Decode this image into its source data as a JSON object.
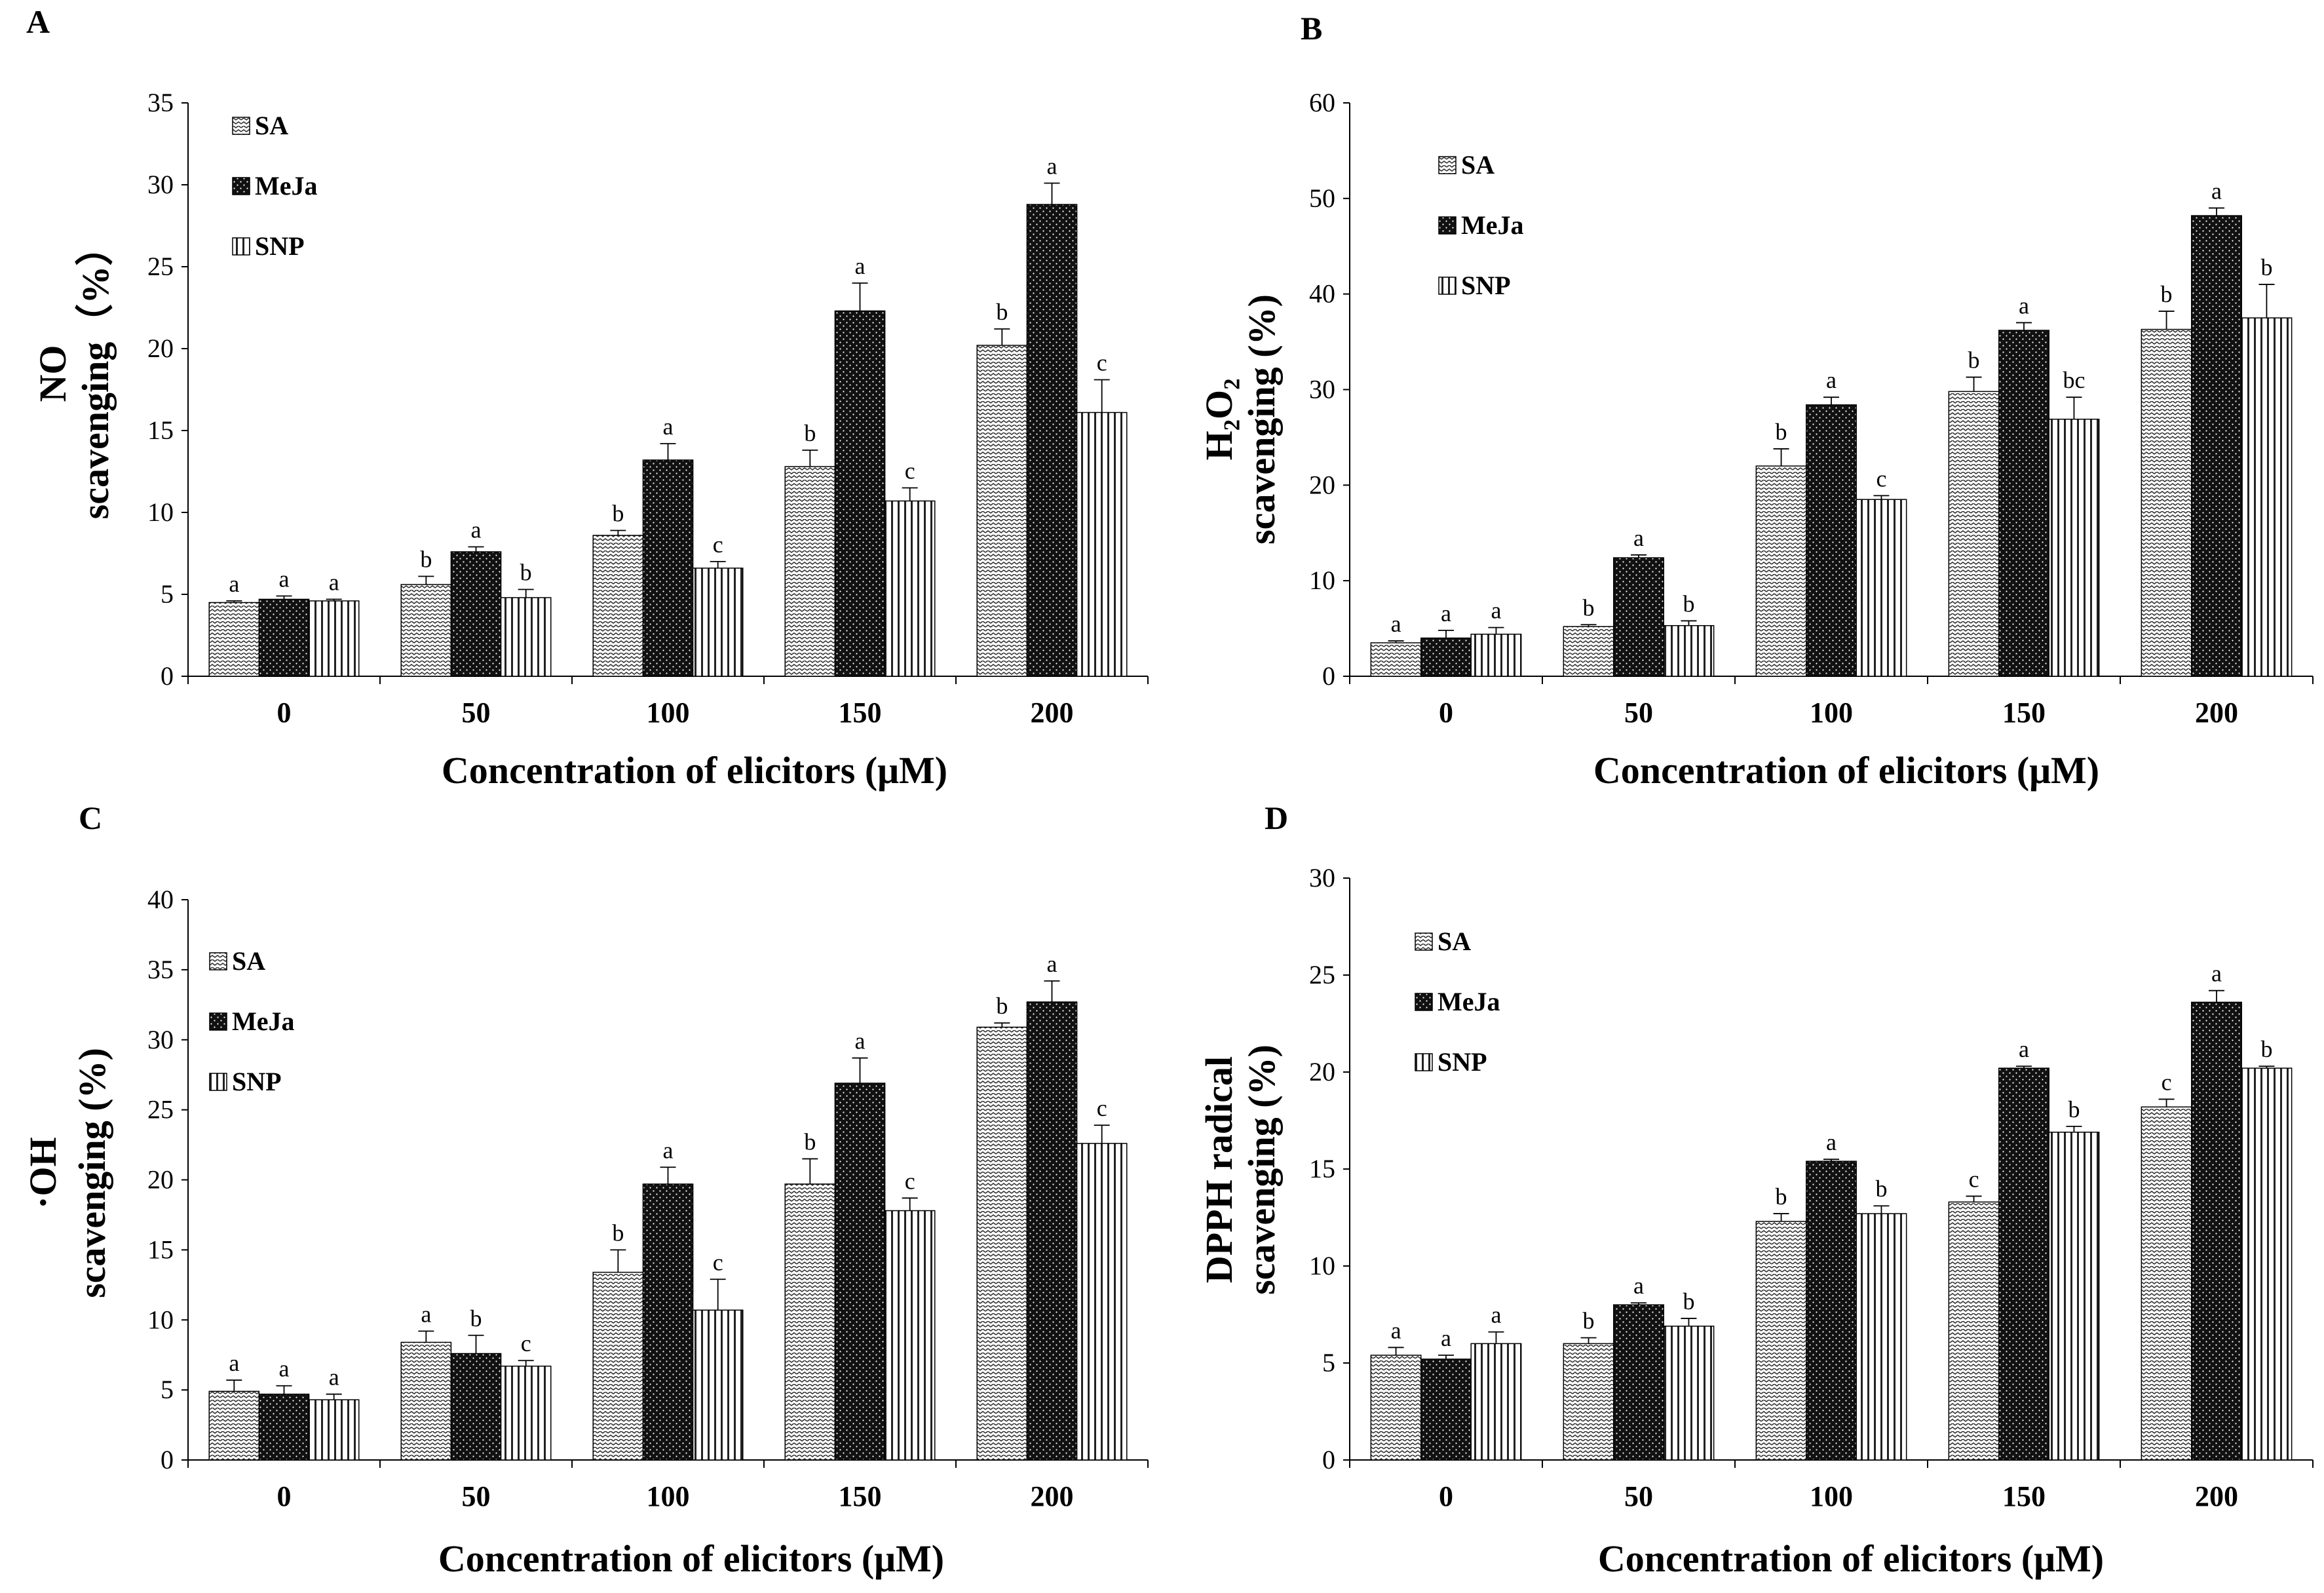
{
  "legend": [
    "SA",
    "MeJa",
    "SNP"
  ],
  "chart_data": [
    {
      "panel": "A",
      "type": "bar",
      "categories": [
        "0",
        "50",
        "100",
        "150",
        "200"
      ],
      "xlabel": "Concentration of elicitors (μM)",
      "ylabel_lines": [
        "NO",
        "scavenging（%）"
      ],
      "ylim": [
        0,
        35
      ],
      "yticks": [
        0,
        5,
        10,
        15,
        20,
        25,
        30,
        35
      ],
      "series": [
        {
          "name": "SA",
          "values": [
            4.5,
            5.6,
            8.6,
            12.8,
            20.2
          ],
          "errors": [
            0.1,
            0.5,
            0.3,
            1.0,
            1.0
          ],
          "letters": [
            "a",
            "b",
            "b",
            "b",
            "b"
          ]
        },
        {
          "name": "MeJa",
          "values": [
            4.7,
            7.6,
            13.2,
            22.3,
            28.8
          ],
          "errors": [
            0.2,
            0.3,
            1.0,
            1.7,
            1.3
          ],
          "letters": [
            "a",
            "a",
            "a",
            "a",
            "a"
          ]
        },
        {
          "name": "SNP",
          "values": [
            4.6,
            4.8,
            6.6,
            10.7,
            16.1
          ],
          "errors": [
            0.1,
            0.5,
            0.4,
            0.8,
            2.0
          ],
          "letters": [
            "a",
            "b",
            "c",
            "c",
            "c"
          ]
        }
      ]
    },
    {
      "panel": "B",
      "type": "bar",
      "categories": [
        "0",
        "50",
        "100",
        "150",
        "200"
      ],
      "xlabel": "Concentration of elicitors (μM)",
      "ylabel_lines": [
        "H₂O₂",
        "scavenging (%)"
      ],
      "ylim": [
        0,
        60
      ],
      "yticks": [
        0,
        10,
        20,
        30,
        40,
        50,
        60
      ],
      "series": [
        {
          "name": "SA",
          "values": [
            3.5,
            5.2,
            22.0,
            29.8,
            36.3
          ],
          "errors": [
            0.2,
            0.2,
            1.8,
            1.5,
            1.9
          ],
          "letters": [
            "a",
            "b",
            "b",
            "b",
            "b"
          ]
        },
        {
          "name": "MeJa",
          "values": [
            4.0,
            12.4,
            28.4,
            36.2,
            48.2
          ],
          "errors": [
            0.8,
            0.3,
            0.8,
            0.8,
            0.8
          ],
          "letters": [
            "a",
            "a",
            "a",
            "a",
            "a"
          ]
        },
        {
          "name": "SNP",
          "values": [
            4.4,
            5.3,
            18.5,
            26.9,
            37.5
          ],
          "errors": [
            0.7,
            0.5,
            0.4,
            2.3,
            3.5
          ],
          "letters": [
            "a",
            "b",
            "c",
            "bc",
            "b"
          ]
        }
      ]
    },
    {
      "panel": "C",
      "type": "bar",
      "categories": [
        "0",
        "50",
        "100",
        "150",
        "200"
      ],
      "xlabel": "Concentration of elicitors (μM)",
      "ylabel_lines": [
        "·OH",
        "scavenging (%)"
      ],
      "ylim": [
        0,
        40
      ],
      "yticks": [
        0,
        5,
        10,
        15,
        20,
        25,
        30,
        35,
        40
      ],
      "series": [
        {
          "name": "SA",
          "values": [
            4.9,
            8.4,
            13.4,
            19.7,
            30.9
          ],
          "errors": [
            0.8,
            0.8,
            1.6,
            1.8,
            0.3
          ],
          "letters": [
            "a",
            "a",
            "b",
            "b",
            "b"
          ]
        },
        {
          "name": "MeJa",
          "values": [
            4.7,
            7.6,
            19.7,
            26.9,
            32.7
          ],
          "errors": [
            0.6,
            1.3,
            1.2,
            1.8,
            1.5
          ],
          "letters": [
            "a",
            "b",
            "a",
            "a",
            "a"
          ]
        },
        {
          "name": "SNP",
          "values": [
            4.3,
            6.7,
            10.7,
            17.8,
            22.6
          ],
          "errors": [
            0.4,
            0.4,
            2.2,
            0.9,
            1.3
          ],
          "letters": [
            "a",
            "c",
            "c",
            "c",
            "c"
          ]
        }
      ]
    },
    {
      "panel": "D",
      "type": "bar",
      "categories": [
        "0",
        "50",
        "100",
        "150",
        "200"
      ],
      "xlabel": "Concentration of elicitors (μM)",
      "ylabel_lines": [
        "DPPH radical",
        "scavenging  (%)"
      ],
      "ylim": [
        0,
        30
      ],
      "yticks": [
        0,
        5,
        10,
        15,
        20,
        25,
        30
      ],
      "series": [
        {
          "name": "SA",
          "values": [
            5.4,
            6.0,
            12.3,
            13.3,
            18.2
          ],
          "errors": [
            0.4,
            0.3,
            0.4,
            0.3,
            0.4
          ],
          "letters": [
            "a",
            "b",
            "b",
            "c",
            "c"
          ]
        },
        {
          "name": "MeJa",
          "values": [
            5.2,
            8.0,
            15.4,
            20.2,
            23.6
          ],
          "errors": [
            0.2,
            0.1,
            0.1,
            0.1,
            0.6
          ],
          "letters": [
            "a",
            "a",
            "a",
            "a",
            "a"
          ]
        },
        {
          "name": "SNP",
          "values": [
            6.0,
            6.9,
            12.7,
            16.9,
            20.2
          ],
          "errors": [
            0.6,
            0.4,
            0.4,
            0.3,
            0.1
          ],
          "letters": [
            "a",
            "b",
            "b",
            "b",
            "b"
          ]
        }
      ]
    }
  ]
}
